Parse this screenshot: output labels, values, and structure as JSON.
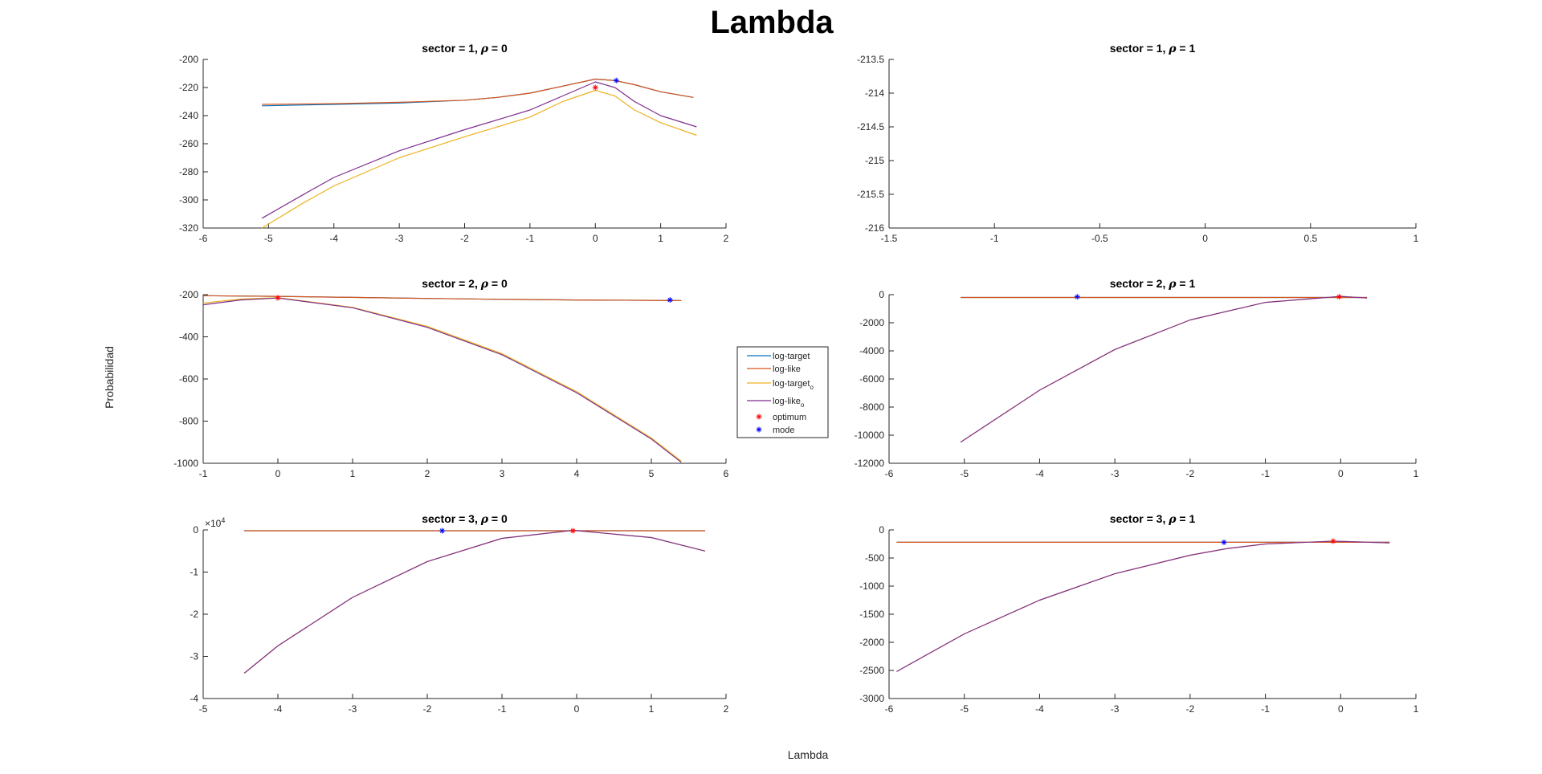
{
  "figure": {
    "title": "Lambda",
    "xlabel": "Lambda",
    "ylabel": "Probabilidad"
  },
  "legend": [
    {
      "label": "log-target",
      "sub": "",
      "color": "#0072BD",
      "kind": "line"
    },
    {
      "label": "log-like",
      "sub": "",
      "color": "#D95319",
      "kind": "line"
    },
    {
      "label": "log-target",
      "sub": "o",
      "color": "#EDB120",
      "kind": "line"
    },
    {
      "label": "log-like",
      "sub": "o",
      "color": "#7E2F8E",
      "kind": "line"
    },
    {
      "label": "optimum",
      "sub": "",
      "color": "#FF0000",
      "kind": "star"
    },
    {
      "label": "mode",
      "sub": "",
      "color": "#0000FF",
      "kind": "star"
    }
  ],
  "chart_data": [
    {
      "type": "line",
      "title_prefix": "sector = 1, ",
      "title_suffix": " = 0",
      "xlim": [
        -6,
        2
      ],
      "ylim": [
        -320,
        -200
      ],
      "xticks": [
        -6,
        -5,
        -4,
        -3,
        -2,
        -1,
        0,
        1,
        2
      ],
      "yticks": [
        -320,
        -300,
        -280,
        -260,
        -240,
        -220,
        -200
      ],
      "series": [
        {
          "key": "log-target",
          "x": [
            -5.1,
            -4,
            -3,
            -2,
            -1.5,
            -1,
            -0.5,
            0,
            0.3,
            0.6,
            1,
            1.5
          ],
          "y": [
            -233,
            -232,
            -231,
            -229,
            -227,
            -224,
            -219,
            -214,
            -215,
            -218,
            -223,
            -227
          ]
        },
        {
          "key": "log-like",
          "x": [
            -5.1,
            -4,
            -3,
            -2,
            -1.5,
            -1,
            -0.5,
            0,
            0.3,
            0.6,
            1,
            1.5
          ],
          "y": [
            -232,
            -231.5,
            -230.5,
            -229,
            -227,
            -224,
            -219,
            -214,
            -215,
            -218,
            -223,
            -227
          ]
        },
        {
          "key": "log-target_o",
          "x": [
            -5.1,
            -4.5,
            -4,
            -3,
            -2,
            -1,
            -0.5,
            0,
            0.3,
            0.6,
            1,
            1.55
          ],
          "y": [
            -320,
            -303,
            -290,
            -270,
            -255,
            -241,
            -230,
            -222,
            -226,
            -236,
            -245,
            -254
          ]
        },
        {
          "key": "log-like_o",
          "x": [
            -5.1,
            -4.5,
            -4,
            -3,
            -2,
            -1,
            -0.5,
            0,
            0.3,
            0.6,
            1,
            1.55
          ],
          "y": [
            -313,
            -297,
            -284,
            -265,
            -250,
            -236,
            -226,
            -216,
            -220,
            -230,
            -240,
            -248
          ]
        }
      ],
      "optimum": [
        0,
        -220
      ],
      "mode": [
        0.32,
        -215
      ]
    },
    {
      "type": "line",
      "title_prefix": "sector = 1, ",
      "title_suffix": " = 1",
      "xlim": [
        -1.5,
        1
      ],
      "ylim": [
        -216,
        -213.5
      ],
      "xticks": [
        -1.5,
        -1,
        -0.5,
        0,
        0.5,
        1
      ],
      "yticks": [
        -216,
        -215.5,
        -215,
        -214.5,
        -214,
        -213.5
      ],
      "series": []
    },
    {
      "type": "line",
      "title_prefix": "sector = 2, ",
      "title_suffix": " = 0",
      "xlim": [
        -1,
        6
      ],
      "ylim": [
        -1000,
        -200
      ],
      "xticks": [
        -1,
        0,
        1,
        2,
        3,
        4,
        5,
        6
      ],
      "yticks": [
        -1000,
        -800,
        -600,
        -400,
        -200
      ],
      "series": [
        {
          "key": "log-target",
          "x": [
            -1,
            0,
            1,
            2,
            3,
            4,
            5,
            5.4
          ],
          "y": [
            -205,
            -208,
            -213,
            -218,
            -222,
            -225,
            -227,
            -228
          ]
        },
        {
          "key": "log-like",
          "x": [
            -1,
            0,
            1,
            2,
            3,
            4,
            5,
            5.4
          ],
          "y": [
            -205,
            -208,
            -213,
            -218,
            -222,
            -225,
            -227,
            -228
          ]
        },
        {
          "key": "log-target_o",
          "x": [
            -1,
            -0.5,
            0,
            1,
            2,
            3,
            4,
            5,
            5.4
          ],
          "y": [
            -240,
            -221,
            -214,
            -260,
            -350,
            -480,
            -660,
            -880,
            -990
          ]
        },
        {
          "key": "log-like_o",
          "x": [
            -1,
            -0.5,
            0,
            1,
            2,
            3,
            4,
            5,
            5.4
          ],
          "y": [
            -248,
            -225,
            -216,
            -262,
            -355,
            -485,
            -665,
            -885,
            -995
          ]
        }
      ],
      "optimum": [
        0,
        -215
      ],
      "mode": [
        5.25,
        -225
      ]
    },
    {
      "type": "line",
      "title_prefix": "sector = 2, ",
      "title_suffix": " = 1",
      "xlim": [
        -6,
        1
      ],
      "ylim": [
        -12000,
        0
      ],
      "xticks": [
        -6,
        -5,
        -4,
        -3,
        -2,
        -1,
        0,
        1
      ],
      "yticks": [
        -12000,
        -10000,
        -8000,
        -6000,
        -4000,
        -2000,
        0
      ],
      "series": [
        {
          "key": "log-target",
          "x": [
            -5.05,
            0.35
          ],
          "y": [
            -200,
            -200
          ]
        },
        {
          "key": "log-like",
          "x": [
            -5.05,
            0.35
          ],
          "y": [
            -200,
            -200
          ]
        },
        {
          "key": "log-target_o",
          "x": [
            -5.05,
            -4,
            -3,
            -2,
            -1,
            0,
            0.35
          ],
          "y": [
            -10500,
            -6800,
            -3900,
            -1800,
            -550,
            -120,
            -240
          ]
        },
        {
          "key": "log-like_o",
          "x": [
            -5.05,
            -4,
            -3,
            -2,
            -1,
            0,
            0.35
          ],
          "y": [
            -10500,
            -6800,
            -3900,
            -1800,
            -550,
            -120,
            -240
          ]
        }
      ],
      "optimum": [
        -0.02,
        -150
      ],
      "mode": [
        -3.5,
        -150
      ]
    },
    {
      "type": "line",
      "title_prefix": "sector = 3, ",
      "title_suffix": " = 0",
      "xlim": [
        -5,
        2
      ],
      "ylim": [
        -4,
        0
      ],
      "xticks": [
        -5,
        -4,
        -3,
        -2,
        -1,
        0,
        1,
        2
      ],
      "yticks": [
        -4,
        -3,
        -2,
        -1,
        0
      ],
      "exponent": "4",
      "series": [
        {
          "key": "log-target",
          "x": [
            -4.45,
            1.72
          ],
          "y": [
            -0.02,
            -0.02
          ]
        },
        {
          "key": "log-like",
          "x": [
            -4.45,
            1.72
          ],
          "y": [
            -0.02,
            -0.02
          ]
        },
        {
          "key": "log-target_o",
          "x": [
            -4.45,
            -4,
            -3,
            -2,
            -1,
            -0.05,
            1,
            1.72
          ],
          "y": [
            -3.4,
            -2.75,
            -1.6,
            -0.75,
            -0.2,
            -0.01,
            -0.18,
            -0.5
          ]
        },
        {
          "key": "log-like_o",
          "x": [
            -4.45,
            -4,
            -3,
            -2,
            -1,
            -0.05,
            1,
            1.72
          ],
          "y": [
            -3.4,
            -2.75,
            -1.6,
            -0.75,
            -0.2,
            -0.01,
            -0.18,
            -0.5
          ]
        }
      ],
      "optimum": [
        -0.05,
        -0.02
      ],
      "mode": [
        -1.8,
        -0.02
      ]
    },
    {
      "type": "line",
      "title_prefix": "sector = 3, ",
      "title_suffix": " = 1",
      "xlim": [
        -6,
        1
      ],
      "ylim": [
        -3000,
        0
      ],
      "xticks": [
        -6,
        -5,
        -4,
        -3,
        -2,
        -1,
        0,
        1
      ],
      "yticks": [
        -3000,
        -2500,
        -2000,
        -1500,
        -1000,
        -500,
        0
      ],
      "series": [
        {
          "key": "log-target",
          "x": [
            -5.9,
            0.65
          ],
          "y": [
            -220,
            -220
          ]
        },
        {
          "key": "log-like",
          "x": [
            -5.9,
            0.65
          ],
          "y": [
            -220,
            -220
          ]
        },
        {
          "key": "log-target_o",
          "x": [
            -5.9,
            -5,
            -4,
            -3,
            -2,
            -1.5,
            -1,
            -0.1,
            0.65
          ],
          "y": [
            -2520,
            -1850,
            -1250,
            -780,
            -450,
            -330,
            -250,
            -200,
            -230
          ]
        },
        {
          "key": "log-like_o",
          "x": [
            -5.9,
            -5,
            -4,
            -3,
            -2,
            -1.5,
            -1,
            -0.1,
            0.65
          ],
          "y": [
            -2520,
            -1850,
            -1250,
            -780,
            -450,
            -330,
            -250,
            -200,
            -230
          ]
        }
      ],
      "optimum": [
        -0.1,
        -200
      ],
      "mode": [
        -1.55,
        -220
      ]
    }
  ]
}
